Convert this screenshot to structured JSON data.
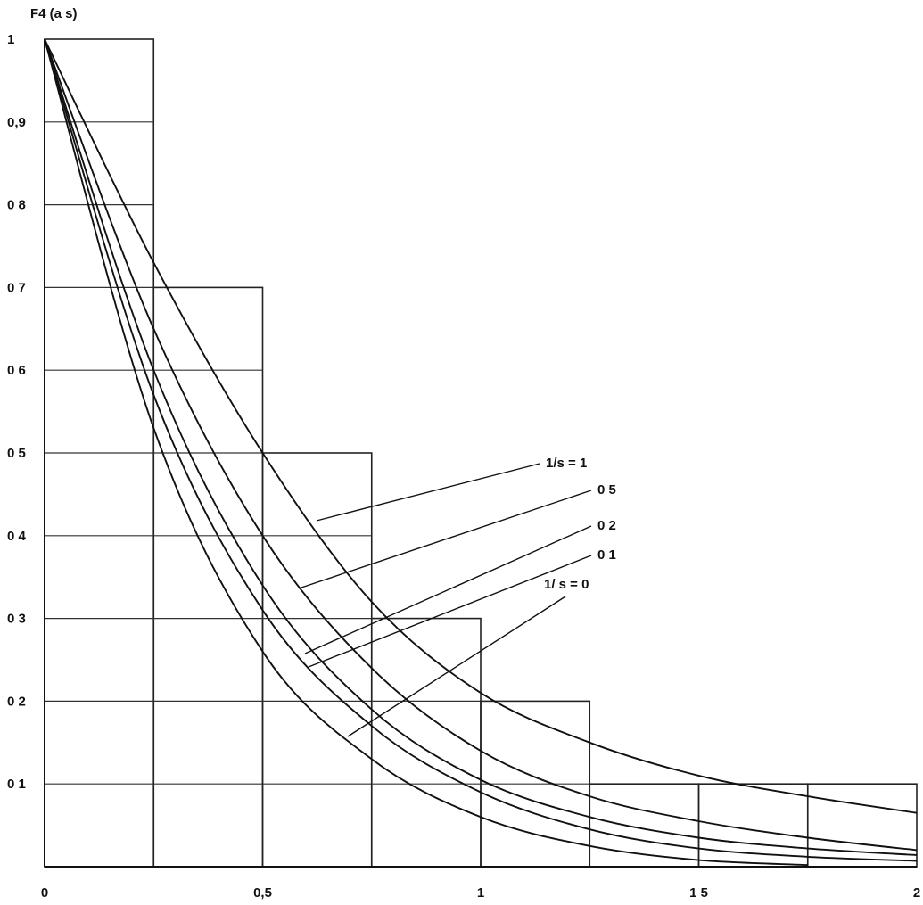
{
  "chart_data": {
    "type": "line",
    "ylabel": "F4 (a s)",
    "xlim": [
      0,
      2
    ],
    "ylim": [
      0,
      1
    ],
    "x_ticks": [
      {
        "value": 0,
        "label": "0"
      },
      {
        "value": 0.5,
        "label": "0,5"
      },
      {
        "value": 1,
        "label": "1"
      },
      {
        "value": 1.5,
        "label": "1 5"
      },
      {
        "value": 2,
        "label": "2"
      }
    ],
    "y_ticks": [
      {
        "value": 0.1,
        "label": "0 1"
      },
      {
        "value": 0.2,
        "label": "0 2"
      },
      {
        "value": 0.3,
        "label": "0 3"
      },
      {
        "value": 0.4,
        "label": "0 4"
      },
      {
        "value": 0.5,
        "label": "0 5"
      },
      {
        "value": 0.6,
        "label": "0 6"
      },
      {
        "value": 0.7,
        "label": "0 7"
      },
      {
        "value": 0.8,
        "label": "0 8"
      },
      {
        "value": 0.9,
        "label": "0,9"
      },
      {
        "value": 1,
        "label": "1"
      }
    ],
    "histogram": {
      "edges": [
        0,
        0.25,
        0.5,
        0.75,
        1,
        1.25,
        1.5,
        1.75,
        2
      ],
      "values": [
        1,
        0.7,
        0.5,
        0.3,
        0.2,
        0.1,
        0.1,
        0.1
      ]
    },
    "series": [
      {
        "name": "1/s = 1",
        "x": [
          0,
          0.25,
          0.5,
          0.75,
          1,
          1.25,
          1.5,
          1.75,
          2
        ],
        "y": [
          1,
          0.73,
          0.5,
          0.32,
          0.21,
          0.15,
          0.11,
          0.085,
          0.065
        ]
      },
      {
        "name": "0 5",
        "x": [
          0,
          0.25,
          0.5,
          0.75,
          1,
          1.25,
          1.5,
          1.75,
          2
        ],
        "y": [
          1,
          0.65,
          0.4,
          0.24,
          0.14,
          0.085,
          0.055,
          0.035,
          0.02
        ]
      },
      {
        "name": "0 2",
        "x": [
          0,
          0.25,
          0.5,
          0.75,
          1,
          1.25,
          1.5,
          1.75,
          2
        ],
        "y": [
          1,
          0.6,
          0.34,
          0.19,
          0.105,
          0.06,
          0.035,
          0.022,
          0.014
        ]
      },
      {
        "name": "0 1",
        "x": [
          0,
          0.25,
          0.5,
          0.75,
          1,
          1.25,
          1.5,
          1.75,
          2
        ],
        "y": [
          1,
          0.57,
          0.31,
          0.17,
          0.09,
          0.045,
          0.022,
          0.012,
          0.007
        ]
      },
      {
        "name": "1/ s = 0",
        "x": [
          0,
          0.25,
          0.5,
          0.75,
          1,
          1.25,
          1.5,
          1.75
        ],
        "y": [
          1,
          0.53,
          0.26,
          0.13,
          0.06,
          0.025,
          0.008,
          0.002
        ]
      }
    ]
  }
}
